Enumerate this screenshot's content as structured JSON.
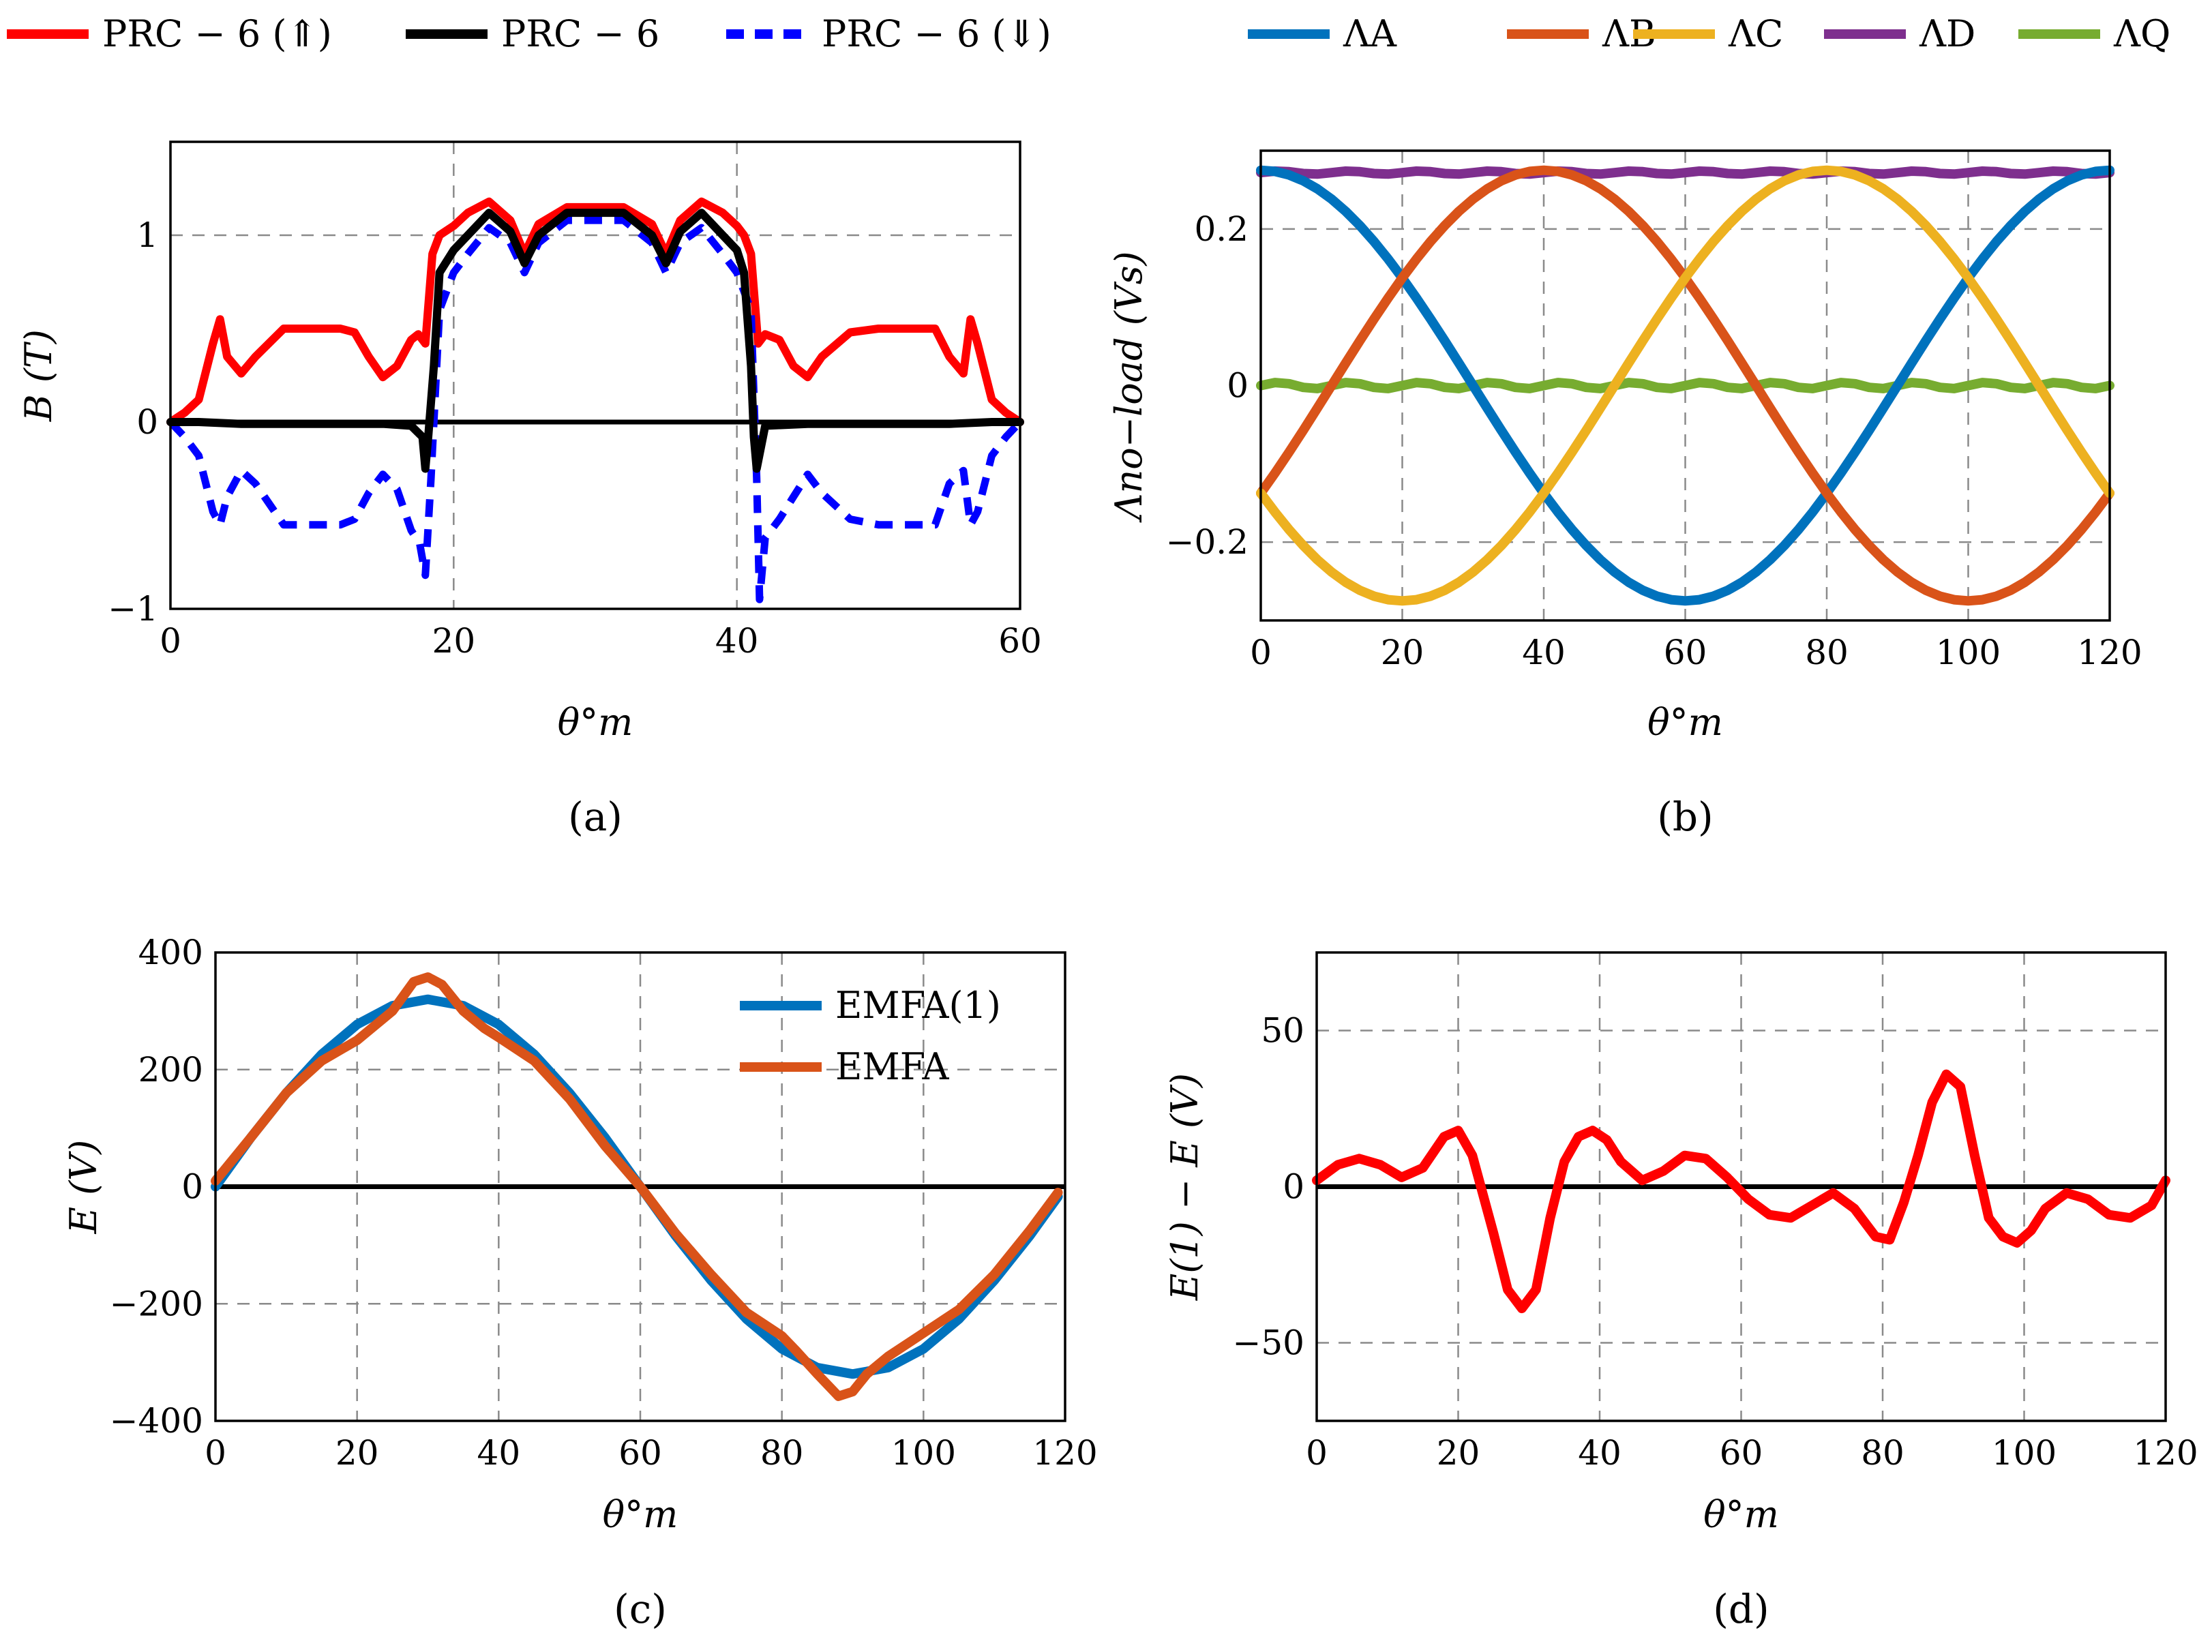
{
  "panels": {
    "a": {
      "caption_letter": "a",
      "legend": [
        "PRC − 6 (⇑)",
        "PRC − 6",
        "PRC − 6 (⇓)"
      ],
      "xticks": [
        "0",
        "20",
        "40",
        "60"
      ],
      "yticks": [
        "1",
        "0",
        "−1"
      ],
      "xlabel": "θ°m",
      "ylabel": "B (T)"
    },
    "b": {
      "caption_letter": "b",
      "legend": [
        "ΛA",
        "ΛB",
        "ΛC",
        "ΛD",
        "ΛQ"
      ],
      "xticks": [
        "0",
        "20",
        "40",
        "60",
        "80",
        "100",
        "120"
      ],
      "yticks": [
        "0.2",
        "0",
        "−0.2"
      ],
      "xlabel": "θ°m",
      "ylabel": "Λno−load (Vs)"
    },
    "c": {
      "caption_letter": "c",
      "legend": [
        "EMFA(1)",
        "EMFA"
      ],
      "xticks": [
        "0",
        "20",
        "40",
        "60",
        "80",
        "100",
        "120"
      ],
      "yticks": [
        "400",
        "200",
        "0",
        "−200",
        "−400"
      ],
      "xlabel": "θ°m",
      "ylabel": "E (V)"
    },
    "d": {
      "caption_letter": "d",
      "xticks": [
        "0",
        "20",
        "40",
        "60",
        "80",
        "100",
        "120"
      ],
      "yticks": [
        "50",
        "0",
        "−50"
      ],
      "xlabel": "θ°m",
      "ylabel": "E(1) − E (V)"
    }
  },
  "chart_data": [
    {
      "panel": "a",
      "type": "line",
      "xlim": [
        0,
        60
      ],
      "ylim": [
        -1,
        1.5
      ],
      "grid": true,
      "legend_placement": "top",
      "series": [
        {
          "name": "PRC − 6 (⇑)",
          "color": "#ff0000",
          "style": "solid",
          "x": [
            0,
            1,
            2,
            3,
            3.5,
            4,
            5,
            6,
            8,
            10,
            12,
            13,
            14,
            15,
            16,
            17,
            17.5,
            18,
            18.5,
            19,
            20,
            21,
            22.5,
            24,
            25,
            26,
            28,
            30,
            32,
            34,
            35,
            36,
            37.5,
            39,
            40,
            40.5,
            41,
            41.5,
            42,
            43,
            44,
            45,
            46,
            48,
            50,
            52,
            54,
            55,
            56,
            56.5,
            57,
            58,
            59,
            60
          ],
          "y": [
            0,
            0.05,
            0.12,
            0.42,
            0.55,
            0.35,
            0.26,
            0.35,
            0.5,
            0.5,
            0.5,
            0.48,
            0.35,
            0.24,
            0.3,
            0.44,
            0.47,
            0.42,
            0.9,
            1.0,
            1.05,
            1.12,
            1.18,
            1.08,
            0.9,
            1.06,
            1.15,
            1.15,
            1.15,
            1.06,
            0.9,
            1.08,
            1.18,
            1.12,
            1.05,
            1.0,
            0.9,
            0.42,
            0.47,
            0.44,
            0.3,
            0.24,
            0.35,
            0.48,
            0.5,
            0.5,
            0.5,
            0.35,
            0.26,
            0.55,
            0.42,
            0.12,
            0.05,
            0
          ]
        },
        {
          "name": "PRC − 6",
          "color": "#000000",
          "style": "solid",
          "x": [
            0,
            2,
            5,
            10,
            15,
            17,
            17.8,
            18,
            18.2,
            18.6,
            19,
            20,
            21,
            22.5,
            24,
            25,
            26,
            28,
            30,
            32,
            34,
            35,
            36,
            37.5,
            39,
            40,
            40.5,
            41,
            41.2,
            41.4,
            42,
            45,
            50,
            55,
            58,
            60
          ],
          "y": [
            0,
            0,
            -0.01,
            -0.01,
            -0.01,
            -0.02,
            -0.08,
            -0.25,
            -0.08,
            0.3,
            0.8,
            0.92,
            1.0,
            1.12,
            1.02,
            0.85,
            1.0,
            1.12,
            1.12,
            1.12,
            1.0,
            0.85,
            1.02,
            1.12,
            1.0,
            0.92,
            0.8,
            0.3,
            -0.08,
            -0.25,
            -0.02,
            -0.01,
            -0.01,
            -0.01,
            0,
            0
          ]
        },
        {
          "name": "PRC − 6 (⇓)",
          "color": "#0000ff",
          "style": "dashed",
          "x": [
            0,
            1,
            2,
            3,
            3.5,
            4,
            5,
            6,
            8,
            10,
            12,
            13,
            14,
            15,
            16,
            17,
            17.6,
            18,
            18.4,
            19,
            20,
            21,
            22.5,
            24,
            25,
            26,
            28,
            30,
            32,
            34,
            35,
            36,
            37.5,
            39,
            40,
            41,
            41.4,
            41.6,
            42,
            43,
            44,
            45,
            46,
            48,
            50,
            52,
            54,
            55,
            56,
            56.5,
            57,
            58,
            59,
            60
          ],
          "y": [
            0,
            -0.08,
            -0.18,
            -0.48,
            -0.55,
            -0.4,
            -0.26,
            -0.33,
            -0.55,
            -0.55,
            -0.55,
            -0.52,
            -0.38,
            -0.28,
            -0.36,
            -0.58,
            -0.65,
            -0.82,
            -0.3,
            0.6,
            0.8,
            0.9,
            1.04,
            0.96,
            0.8,
            0.96,
            1.08,
            1.08,
            1.08,
            0.96,
            0.8,
            0.96,
            1.04,
            0.9,
            0.8,
            0.6,
            -0.3,
            -0.95,
            -0.62,
            -0.52,
            -0.4,
            -0.28,
            -0.38,
            -0.52,
            -0.55,
            -0.55,
            -0.55,
            -0.33,
            -0.26,
            -0.55,
            -0.48,
            -0.18,
            -0.08,
            0
          ]
        }
      ]
    },
    {
      "panel": "b",
      "type": "line",
      "xlim": [
        0,
        120
      ],
      "ylim": [
        -0.3,
        0.3
      ],
      "grid": true,
      "legend_placement": "top",
      "series": [
        {
          "name": "ΛA",
          "color": "#0072bd",
          "amplitude": 0.275,
          "phase_deg": 0,
          "points": 61
        },
        {
          "name": "ΛB",
          "color": "#d95319",
          "amplitude": 0.275,
          "phase_deg": -120,
          "points": 61
        },
        {
          "name": "ΛC",
          "color": "#edb120",
          "amplitude": 0.275,
          "phase_deg": 120,
          "points": 61
        },
        {
          "name": "ΛD",
          "color": "#7e2f8e",
          "constant": 0.272,
          "ripple": 0.002
        },
        {
          "name": "ΛQ",
          "color": "#77ac30",
          "constant": 0.0,
          "ripple": 0.004
        }
      ]
    },
    {
      "panel": "c",
      "type": "line",
      "xlim": [
        0,
        120
      ],
      "ylim": [
        -400,
        400
      ],
      "grid": true,
      "legend_placement": "top-right",
      "series": [
        {
          "name": "EMFA(1)",
          "color": "#0072bd",
          "x": [
            0,
            5,
            10,
            15,
            20,
            25,
            30,
            35,
            40,
            45,
            50,
            55,
            60,
            65,
            70,
            75,
            80,
            85,
            90,
            95,
            100,
            105,
            110,
            115,
            119
          ],
          "y": [
            0,
            84,
            160,
            226,
            277,
            309,
            320,
            309,
            277,
            226,
            160,
            84,
            0,
            -84,
            -160,
            -226,
            -277,
            -309,
            -320,
            -309,
            -277,
            -226,
            -160,
            -84,
            -17
          ]
        },
        {
          "name": "EMFA",
          "color": "#d95319",
          "x": [
            0,
            5,
            10,
            15,
            20,
            25,
            28,
            30,
            32,
            35,
            38,
            40,
            45,
            50,
            55,
            60,
            65,
            70,
            75,
            80,
            82,
            85,
            88,
            90,
            92,
            95,
            100,
            105,
            110,
            115,
            119
          ],
          "y": [
            10,
            84,
            160,
            215,
            250,
            300,
            350,
            358,
            345,
            300,
            270,
            255,
            215,
            150,
            70,
            0,
            -80,
            -150,
            -215,
            -255,
            -280,
            -320,
            -358,
            -350,
            -320,
            -290,
            -250,
            -210,
            -150,
            -75,
            -10
          ]
        }
      ]
    },
    {
      "panel": "d",
      "type": "line",
      "xlim": [
        0,
        120
      ],
      "ylim": [
        -75,
        75
      ],
      "grid": true,
      "series": [
        {
          "name": "",
          "color": "#ff0000",
          "x": [
            0,
            3,
            6,
            9,
            12,
            15,
            18,
            20,
            22,
            25,
            27,
            29,
            31,
            33,
            35,
            37,
            39,
            41,
            43,
            46,
            49,
            52,
            55,
            58,
            61,
            64,
            67,
            70,
            73,
            76,
            79,
            81,
            83,
            85,
            87,
            89,
            91,
            93,
            95,
            97,
            99,
            101,
            103,
            106,
            109,
            112,
            115,
            118,
            120
          ],
          "y": [
            2,
            7,
            9,
            7,
            3,
            6,
            16,
            18,
            10,
            -15,
            -33,
            -39,
            -33,
            -10,
            8,
            16,
            18,
            15,
            8,
            2,
            5,
            10,
            9,
            3,
            -4,
            -9,
            -10,
            -6,
            -2,
            -7,
            -16,
            -17,
            -5,
            10,
            27,
            36,
            32,
            10,
            -10,
            -16,
            -18,
            -14,
            -7,
            -2,
            -4,
            -9,
            -10,
            -6,
            2
          ]
        }
      ]
    }
  ]
}
